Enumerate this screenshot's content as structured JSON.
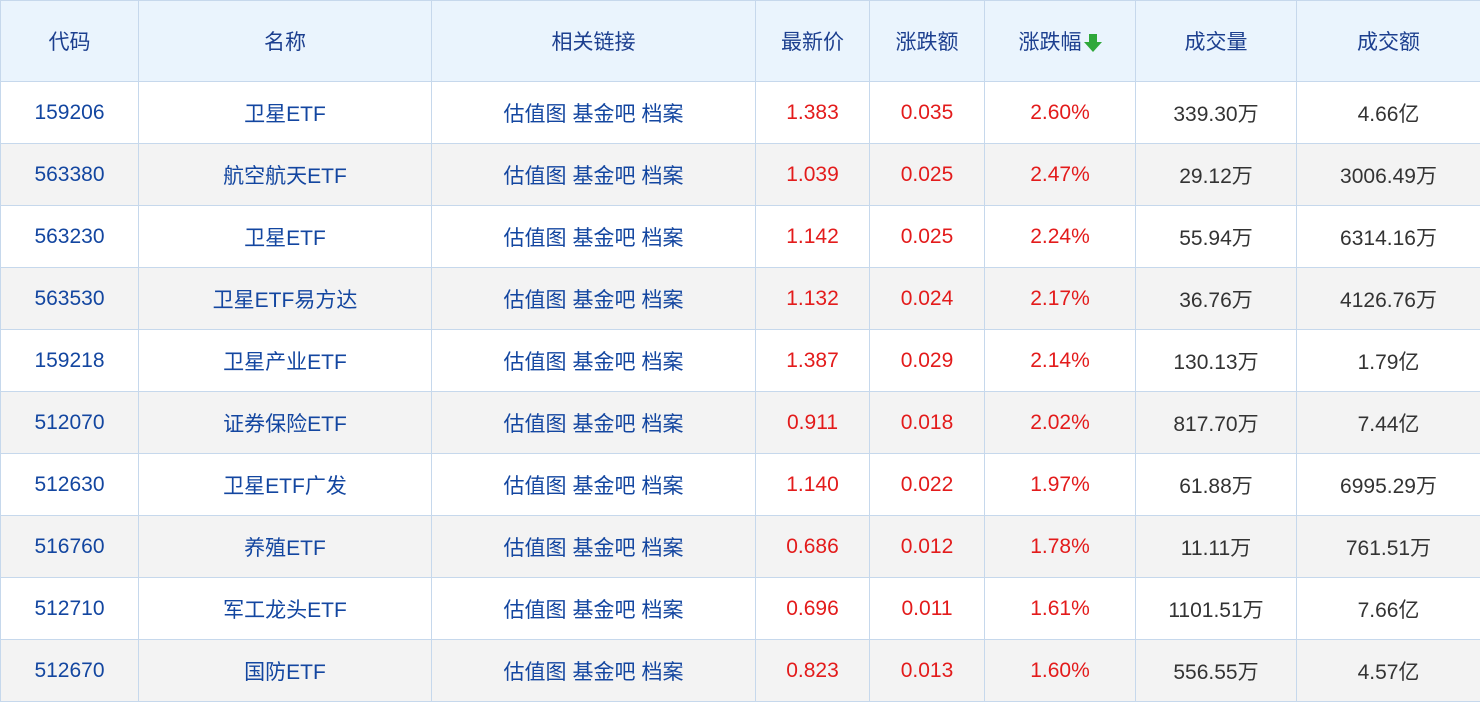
{
  "colors": {
    "header_bg": "#eaf4fd",
    "header_text": "#1c3f8f",
    "link": "#1346a0",
    "up": "#e31b1b",
    "sort_arrow": "#2fa83a"
  },
  "headers": [
    "代码",
    "名称",
    "相关链接",
    "最新价",
    "涨跌额",
    "涨跌幅",
    "成交量",
    "成交额"
  ],
  "sort": {
    "column": "涨跌幅",
    "direction": "descending",
    "icon": "arrow-down-icon"
  },
  "links": [
    "估值图",
    "基金吧",
    "档案"
  ],
  "rows": [
    {
      "code": "159206",
      "name": "卫星ETF",
      "price": "1.383",
      "change": "0.035",
      "pct": "2.60%",
      "volume": "339.30万",
      "amount": "4.66亿"
    },
    {
      "code": "563380",
      "name": "航空航天ETF",
      "price": "1.039",
      "change": "0.025",
      "pct": "2.47%",
      "volume": "29.12万",
      "amount": "3006.49万"
    },
    {
      "code": "563230",
      "name": "卫星ETF",
      "price": "1.142",
      "change": "0.025",
      "pct": "2.24%",
      "volume": "55.94万",
      "amount": "6314.16万"
    },
    {
      "code": "563530",
      "name": "卫星ETF易方达",
      "price": "1.132",
      "change": "0.024",
      "pct": "2.17%",
      "volume": "36.76万",
      "amount": "4126.76万"
    },
    {
      "code": "159218",
      "name": "卫星产业ETF",
      "price": "1.387",
      "change": "0.029",
      "pct": "2.14%",
      "volume": "130.13万",
      "amount": "1.79亿"
    },
    {
      "code": "512070",
      "name": "证券保险ETF",
      "price": "0.911",
      "change": "0.018",
      "pct": "2.02%",
      "volume": "817.70万",
      "amount": "7.44亿"
    },
    {
      "code": "512630",
      "name": "卫星ETF广发",
      "price": "1.140",
      "change": "0.022",
      "pct": "1.97%",
      "volume": "61.88万",
      "amount": "6995.29万"
    },
    {
      "code": "516760",
      "name": "养殖ETF",
      "price": "0.686",
      "change": "0.012",
      "pct": "1.78%",
      "volume": "11.11万",
      "amount": "761.51万"
    },
    {
      "code": "512710",
      "name": "军工龙头ETF",
      "price": "0.696",
      "change": "0.011",
      "pct": "1.61%",
      "volume": "1101.51万",
      "amount": "7.66亿"
    },
    {
      "code": "512670",
      "name": "国防ETF",
      "price": "0.823",
      "change": "0.013",
      "pct": "1.60%",
      "volume": "556.55万",
      "amount": "4.57亿"
    }
  ]
}
